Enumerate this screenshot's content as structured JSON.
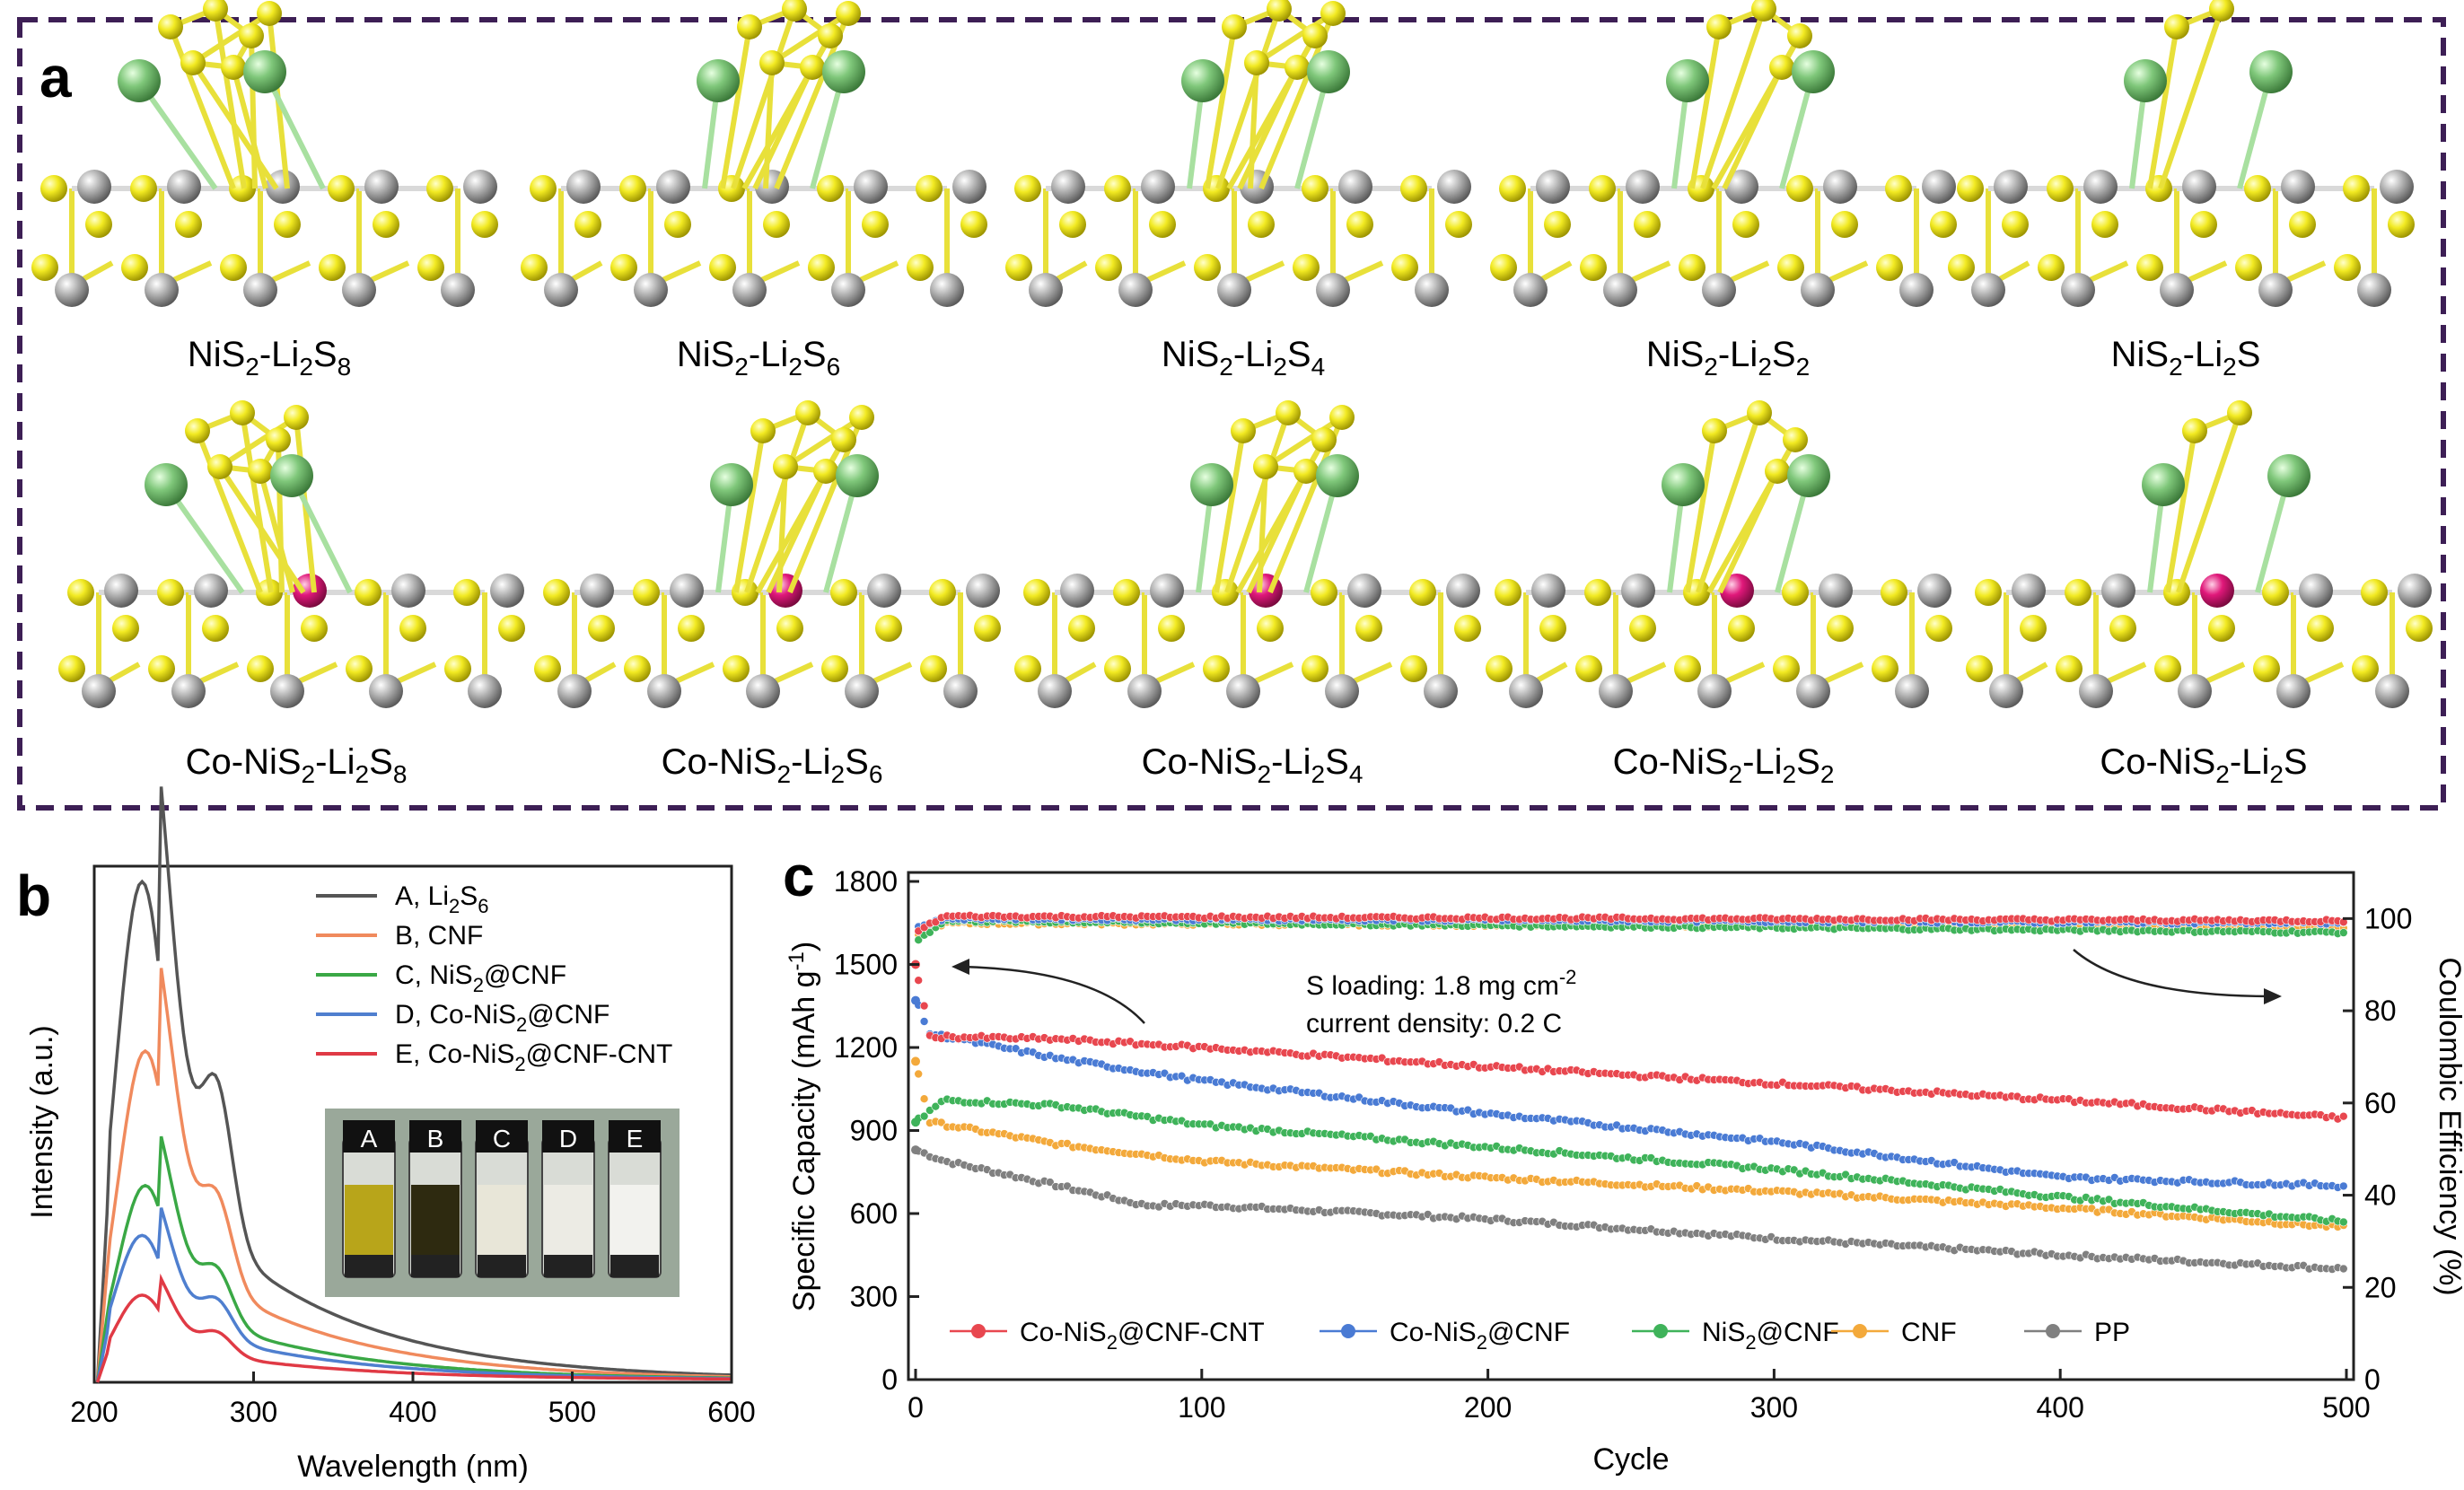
{
  "panel_a": {
    "letter": "a",
    "row1": [
      {
        "prefix": "NiS",
        "sub1": "2",
        "mid": "-Li",
        "sub2": "2",
        "mid2": "S",
        "sub3": "8"
      },
      {
        "prefix": "NiS",
        "sub1": "2",
        "mid": "-Li",
        "sub2": "2",
        "mid2": "S",
        "sub3": "6"
      },
      {
        "prefix": "NiS",
        "sub1": "2",
        "mid": "-Li",
        "sub2": "2",
        "mid2": "S",
        "sub3": "4"
      },
      {
        "prefix": "NiS",
        "sub1": "2",
        "mid": "-Li",
        "sub2": "2",
        "mid2": "S",
        "sub3": "2"
      },
      {
        "prefix": "NiS",
        "sub1": "2",
        "mid": "-Li",
        "sub2": "2",
        "mid2": "S",
        "sub3": ""
      }
    ],
    "row2": [
      {
        "prefix": "Co-NiS",
        "sub1": "2",
        "mid": "-Li",
        "sub2": "2",
        "mid2": "S",
        "sub3": "8"
      },
      {
        "prefix": "Co-NiS",
        "sub1": "2",
        "mid": "-Li",
        "sub2": "2",
        "mid2": "S",
        "sub3": "6"
      },
      {
        "prefix": "Co-NiS",
        "sub1": "2",
        "mid": "-Li",
        "sub2": "2",
        "mid2": "S",
        "sub3": "4"
      },
      {
        "prefix": "Co-NiS",
        "sub1": "2",
        "mid": "-Li",
        "sub2": "2",
        "mid2": "S",
        "sub3": "2"
      },
      {
        "prefix": "Co-NiS",
        "sub1": "2",
        "mid": "-Li",
        "sub2": "2",
        "mid2": "S",
        "sub3": ""
      }
    ]
  },
  "chart_data": [
    {
      "panel": "b",
      "type": "line",
      "xlabel": "Wavelength (nm)",
      "ylabel": "Intensity (a.u.)",
      "xlim": [
        200,
        600
      ],
      "xticks": [
        "200",
        "300",
        "400",
        "500",
        "600"
      ],
      "legend_placement": "top-right",
      "series": [
        {
          "name": "A, Li2S6",
          "legend": {
            "pre": "A, Li",
            "s1": "2",
            "mid": "S",
            "s2": "6",
            "post": ""
          },
          "color": "#555555",
          "peak_x": 230,
          "peak_y": 1.0,
          "shoulder_x": 277,
          "shoulder_y": 0.4
        },
        {
          "name": "B, CNF",
          "legend": {
            "pre": "B, CNF",
            "s1": "",
            "mid": "",
            "s2": "",
            "post": ""
          },
          "color": "#f08a5d",
          "peak_x": 232,
          "peak_y": 0.66,
          "shoulder_x": 277,
          "shoulder_y": 0.23
        },
        {
          "name": "C, NiS2@CNF",
          "legend": {
            "pre": "C, NiS",
            "s1": "2",
            "mid": "@CNF",
            "s2": "",
            "post": ""
          },
          "color": "#3aa845",
          "peak_x": 232,
          "peak_y": 0.39,
          "shoulder_x": 277,
          "shoulder_y": 0.14
        },
        {
          "name": "D, Co-NiS2@CNF",
          "legend": {
            "pre": "D, Co-NiS",
            "s1": "2",
            "mid": "@CNF",
            "s2": "",
            "post": ""
          },
          "color": "#4f7fcf",
          "peak_x": 230,
          "peak_y": 0.29,
          "shoulder_x": 277,
          "shoulder_y": 0.1
        },
        {
          "name": "E, Co-NiS2@CNF-CNT",
          "legend": {
            "pre": "E, Co-NiS",
            "s1": "2",
            "mid": "@CNF-CNT",
            "s2": "",
            "post": ""
          },
          "color": "#e03a45",
          "peak_x": 230,
          "peak_y": 0.17,
          "shoulder_x": 277,
          "shoulder_y": 0.06
        }
      ],
      "inset_vials": [
        "A",
        "B",
        "C",
        "D",
        "E"
      ]
    },
    {
      "panel": "c",
      "type": "scatter",
      "xlabel": "Cycle",
      "ylabel": "Specific Capacity (mAh g⁻¹)",
      "ylabel_pre": "Specific Capacity (mAh g",
      "ylabel_sup": "-1",
      "ylabel_post": ")",
      "y2label": "Coulombic Efficiency (%)",
      "xlim": [
        0,
        500
      ],
      "ylim": [
        0,
        1800
      ],
      "y2lim": [
        0,
        110
      ],
      "xticks": [
        0,
        100,
        200,
        300,
        400,
        500
      ],
      "yticks": [
        0,
        300,
        600,
        900,
        1200,
        1500,
        1800
      ],
      "y2ticks": [
        0,
        20,
        40,
        60,
        80,
        100
      ],
      "annotation_line1_pre": "S loading: 1.8 mg cm",
      "annotation_line1_sup": "-2",
      "annotation_line2": "current density: 0.2 C",
      "legend_placement": "bottom",
      "series": [
        {
          "name": "Co-NiS2@CNF-CNT",
          "legend_pre": "Co-NiS",
          "legend_sub": "2",
          "legend_post": "@CNF-CNT",
          "color": "#e8474f",
          "capacity": [
            [
              0,
              1500
            ],
            [
              5,
              1240
            ],
            [
              50,
              1230
            ],
            [
              100,
              1200
            ],
            [
              200,
              1130
            ],
            [
              300,
              1070
            ],
            [
              400,
              1010
            ],
            [
              500,
              945
            ]
          ],
          "ce": [
            [
              0,
              97
            ],
            [
              10,
              100.5
            ],
            [
              500,
              99.5
            ]
          ]
        },
        {
          "name": "Co-NiS2@CNF",
          "legend_pre": "Co-NiS",
          "legend_sub": "2",
          "legend_post": "@CNF",
          "color": "#4a7bd4",
          "capacity": [
            [
              0,
              1370
            ],
            [
              5,
              1250
            ],
            [
              50,
              1160
            ],
            [
              100,
              1080
            ],
            [
              200,
              960
            ],
            [
              300,
              860
            ],
            [
              400,
              730
            ],
            [
              500,
              700
            ]
          ],
          "ce": [
            [
              0,
              98
            ],
            [
              10,
              100
            ],
            [
              500,
              99
            ]
          ]
        },
        {
          "name": "NiS2@CNF",
          "legend_pre": "NiS",
          "legend_sub": "2",
          "legend_post": "@CNF",
          "color": "#3fb35a",
          "capacity": [
            [
              0,
              930
            ],
            [
              10,
              1010
            ],
            [
              50,
              990
            ],
            [
              100,
              920
            ],
            [
              200,
              840
            ],
            [
              300,
              760
            ],
            [
              400,
              660
            ],
            [
              500,
              570
            ]
          ],
          "ce": [
            [
              0,
              95
            ],
            [
              10,
              99.5
            ],
            [
              500,
              97
            ]
          ]
        },
        {
          "name": "CNF",
          "legend_pre": "CNF",
          "legend_sub": "",
          "legend_post": "",
          "color": "#f3a93b",
          "capacity": [
            [
              0,
              1150
            ],
            [
              5,
              930
            ],
            [
              50,
              850
            ],
            [
              100,
              790
            ],
            [
              200,
              730
            ],
            [
              300,
              680
            ],
            [
              400,
              620
            ],
            [
              500,
              550
            ]
          ],
          "ce": [
            [
              0,
              96
            ],
            [
              10,
              99
            ],
            [
              500,
              98
            ]
          ]
        },
        {
          "name": "PP",
          "legend_pre": "PP",
          "legend_sub": "",
          "legend_post": "",
          "color": "#808080",
          "capacity": [
            [
              0,
              830
            ],
            [
              10,
              790
            ],
            [
              50,
              700
            ],
            [
              80,
              630
            ],
            [
              100,
              630
            ],
            [
              200,
              580
            ],
            [
              300,
              510
            ],
            [
              400,
              450
            ],
            [
              500,
              400
            ]
          ],
          "ce": [
            [
              0,
              97
            ],
            [
              10,
              100
            ],
            [
              500,
              99
            ]
          ]
        }
      ]
    }
  ]
}
